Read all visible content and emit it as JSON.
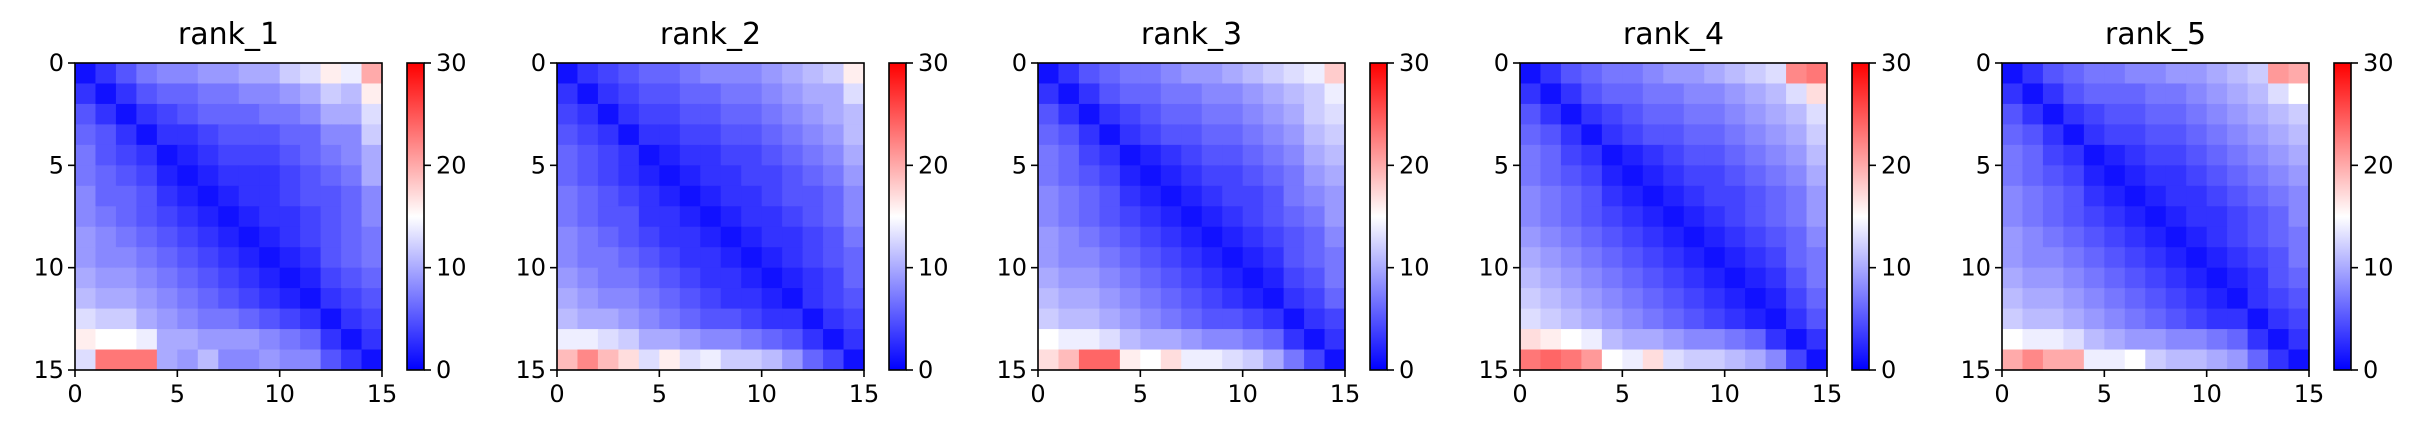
{
  "chart_data": [
    {
      "type": "heatmap",
      "title": "rank_1",
      "xlim": [
        0,
        15
      ],
      "ylim": [
        15,
        0
      ],
      "xticks": [
        "0",
        "5",
        "10",
        "15"
      ],
      "yticks": [
        "0",
        "5",
        "10",
        "15"
      ],
      "colorbar": {
        "range": [
          0,
          30
        ],
        "ticks": [
          "0",
          "10",
          "20",
          "30"
        ],
        "colormap": "bwr"
      },
      "values": [
        [
          1,
          3,
          5,
          7,
          8,
          8,
          9,
          9,
          10,
          10,
          12,
          13,
          16,
          14,
          20
        ],
        [
          3,
          1,
          3,
          5,
          6,
          6,
          7,
          7,
          8,
          8,
          9,
          10,
          12,
          11,
          16
        ],
        [
          5,
          3,
          1,
          3,
          4,
          5,
          6,
          6,
          6,
          7,
          7,
          8,
          10,
          10,
          13
        ],
        [
          6,
          5,
          3,
          1,
          3,
          3,
          4,
          5,
          5,
          5,
          6,
          6,
          8,
          8,
          12
        ],
        [
          7,
          5,
          4,
          3,
          1,
          2,
          3,
          4,
          4,
          4,
          5,
          6,
          7,
          8,
          10
        ],
        [
          7,
          6,
          5,
          4,
          2,
          1,
          2,
          3,
          3,
          3,
          4,
          5,
          6,
          7,
          10
        ],
        [
          8,
          6,
          6,
          5,
          3,
          2,
          1,
          2,
          3,
          3,
          4,
          5,
          5,
          6,
          8
        ],
        [
          8,
          7,
          6,
          5,
          4,
          3,
          2,
          1,
          2,
          3,
          3,
          4,
          5,
          6,
          8
        ],
        [
          9,
          8,
          7,
          6,
          5,
          4,
          3,
          2,
          1,
          2,
          3,
          4,
          5,
          6,
          7
        ],
        [
          9,
          8,
          8,
          7,
          6,
          5,
          4,
          3,
          2,
          1,
          2,
          3,
          5,
          6,
          7
        ],
        [
          10,
          9,
          9,
          8,
          7,
          6,
          5,
          4,
          3,
          2,
          1,
          2,
          4,
          5,
          6
        ],
        [
          11,
          10,
          10,
          9,
          8,
          7,
          6,
          5,
          4,
          3,
          2,
          1,
          3,
          4,
          5
        ],
        [
          13,
          12,
          12,
          10,
          9,
          8,
          7,
          7,
          6,
          5,
          4,
          3,
          1,
          3,
          4
        ],
        [
          16,
          15,
          15,
          14,
          10,
          10,
          9,
          9,
          9,
          8,
          7,
          6,
          3,
          1,
          3
        ],
        [
          13,
          23,
          23,
          23,
          10,
          9,
          11,
          8,
          8,
          9,
          8,
          8,
          5,
          3,
          1
        ]
      ]
    },
    {
      "type": "heatmap",
      "title": "rank_2",
      "xlim": [
        0,
        15
      ],
      "ylim": [
        15,
        0
      ],
      "xticks": [
        "0",
        "5",
        "10",
        "15"
      ],
      "yticks": [
        "0",
        "5",
        "10",
        "15"
      ],
      "colorbar": {
        "range": [
          0,
          30
        ],
        "ticks": [
          "0",
          "10",
          "20",
          "30"
        ],
        "colormap": "bwr"
      },
      "values": [
        [
          1,
          3,
          4,
          5,
          6,
          6,
          7,
          8,
          8,
          8,
          9,
          10,
          11,
          12,
          16
        ],
        [
          3,
          1,
          3,
          4,
          5,
          5,
          6,
          6,
          7,
          7,
          8,
          9,
          10,
          10,
          13
        ],
        [
          4,
          3,
          1,
          3,
          4,
          4,
          5,
          5,
          6,
          6,
          7,
          8,
          9,
          10,
          11
        ],
        [
          5,
          4,
          3,
          1,
          3,
          3,
          4,
          4,
          5,
          5,
          6,
          7,
          8,
          9,
          11
        ],
        [
          6,
          5,
          4,
          3,
          1,
          2,
          3,
          3,
          4,
          4,
          5,
          6,
          7,
          8,
          10
        ],
        [
          6,
          5,
          4,
          3,
          2,
          1,
          2,
          3,
          3,
          4,
          4,
          5,
          6,
          7,
          9
        ],
        [
          7,
          6,
          5,
          4,
          3,
          2,
          1,
          2,
          3,
          3,
          4,
          5,
          5,
          6,
          8
        ],
        [
          7,
          6,
          5,
          5,
          3,
          3,
          2,
          1,
          2,
          3,
          3,
          4,
          5,
          6,
          8
        ],
        [
          8,
          7,
          6,
          5,
          4,
          3,
          3,
          2,
          1,
          2,
          3,
          3,
          4,
          5,
          7
        ],
        [
          8,
          7,
          7,
          6,
          5,
          4,
          3,
          3,
          2,
          1,
          2,
          3,
          4,
          5,
          6
        ],
        [
          9,
          8,
          7,
          7,
          6,
          5,
          4,
          3,
          3,
          2,
          1,
          2,
          3,
          4,
          6
        ],
        [
          10,
          9,
          8,
          8,
          7,
          6,
          5,
          4,
          3,
          3,
          2,
          1,
          3,
          4,
          5
        ],
        [
          11,
          10,
          10,
          9,
          8,
          7,
          6,
          5,
          5,
          4,
          3,
          3,
          1,
          3,
          4
        ],
        [
          14,
          14,
          13,
          12,
          10,
          10,
          9,
          8,
          8,
          7,
          6,
          5,
          3,
          1,
          3
        ],
        [
          19,
          22,
          19,
          17,
          13,
          16,
          13,
          14,
          12,
          12,
          11,
          9,
          6,
          4,
          1
        ]
      ]
    },
    {
      "type": "heatmap",
      "title": "rank_3",
      "xlim": [
        0,
        15
      ],
      "ylim": [
        15,
        0
      ],
      "xticks": [
        "0",
        "5",
        "10",
        "15"
      ],
      "yticks": [
        "0",
        "5",
        "10",
        "15"
      ],
      "colorbar": {
        "range": [
          0,
          30
        ],
        "ticks": [
          "0",
          "10",
          "20",
          "30"
        ],
        "colormap": "bwr"
      },
      "values": [
        [
          1,
          3,
          5,
          6,
          7,
          7,
          8,
          9,
          9,
          10,
          11,
          12,
          13,
          14,
          18
        ],
        [
          3,
          1,
          3,
          5,
          6,
          6,
          7,
          7,
          8,
          8,
          9,
          10,
          11,
          12,
          14
        ],
        [
          5,
          3,
          1,
          3,
          4,
          5,
          6,
          6,
          7,
          7,
          8,
          9,
          10,
          12,
          13
        ],
        [
          6,
          5,
          3,
          1,
          3,
          4,
          5,
          5,
          6,
          6,
          7,
          8,
          9,
          11,
          12
        ],
        [
          7,
          6,
          4,
          3,
          1,
          2,
          3,
          4,
          5,
          5,
          6,
          7,
          8,
          10,
          11
        ],
        [
          7,
          6,
          5,
          4,
          2,
          1,
          2,
          3,
          4,
          4,
          5,
          6,
          7,
          9,
          10
        ],
        [
          8,
          7,
          6,
          5,
          3,
          2,
          1,
          2,
          3,
          4,
          4,
          5,
          7,
          8,
          9
        ],
        [
          8,
          7,
          6,
          5,
          4,
          3,
          2,
          1,
          2,
          3,
          4,
          5,
          6,
          7,
          9
        ],
        [
          9,
          8,
          7,
          6,
          5,
          4,
          3,
          2,
          1,
          2,
          3,
          4,
          5,
          6,
          8
        ],
        [
          9,
          8,
          8,
          7,
          6,
          5,
          4,
          3,
          2,
          1,
          2,
          3,
          5,
          6,
          7
        ],
        [
          10,
          9,
          9,
          8,
          7,
          6,
          5,
          4,
          3,
          2,
          1,
          2,
          4,
          5,
          7
        ],
        [
          11,
          10,
          10,
          9,
          8,
          7,
          6,
          5,
          4,
          3,
          2,
          1,
          3,
          4,
          6
        ],
        [
          12,
          11,
          11,
          10,
          9,
          8,
          7,
          6,
          5,
          5,
          4,
          3,
          1,
          3,
          4
        ],
        [
          15,
          14,
          14,
          13,
          11,
          10,
          10,
          9,
          8,
          8,
          7,
          6,
          3,
          1,
          3
        ],
        [
          17,
          19,
          24,
          24,
          16,
          15,
          17,
          14,
          14,
          13,
          12,
          10,
          7,
          4,
          1
        ]
      ]
    },
    {
      "type": "heatmap",
      "title": "rank_4",
      "xlim": [
        0,
        15
      ],
      "ylim": [
        15,
        0
      ],
      "xticks": [
        "0",
        "5",
        "10",
        "15"
      ],
      "yticks": [
        "0",
        "5",
        "10",
        "15"
      ],
      "colorbar": {
        "range": [
          0,
          30
        ],
        "ticks": [
          "0",
          "10",
          "20",
          "30"
        ],
        "colormap": "bwr"
      },
      "values": [
        [
          1,
          3,
          5,
          6,
          7,
          7,
          8,
          9,
          9,
          10,
          11,
          12,
          13,
          22,
          23
        ],
        [
          3,
          1,
          3,
          5,
          6,
          6,
          7,
          7,
          8,
          8,
          9,
          10,
          11,
          13,
          17
        ],
        [
          5,
          3,
          1,
          3,
          4,
          5,
          6,
          6,
          7,
          7,
          8,
          9,
          10,
          11,
          13
        ],
        [
          6,
          5,
          3,
          1,
          3,
          4,
          5,
          5,
          6,
          6,
          7,
          8,
          9,
          10,
          12
        ],
        [
          7,
          6,
          4,
          3,
          1,
          2,
          3,
          4,
          5,
          5,
          6,
          7,
          8,
          9,
          11
        ],
        [
          7,
          6,
          5,
          4,
          2,
          1,
          2,
          3,
          4,
          4,
          5,
          6,
          7,
          8,
          10
        ],
        [
          8,
          7,
          6,
          5,
          3,
          2,
          1,
          2,
          3,
          4,
          4,
          5,
          6,
          7,
          9
        ],
        [
          8,
          7,
          6,
          5,
          4,
          3,
          2,
          1,
          2,
          3,
          4,
          5,
          6,
          7,
          9
        ],
        [
          9,
          8,
          7,
          6,
          5,
          4,
          3,
          2,
          1,
          2,
          3,
          4,
          5,
          6,
          8
        ],
        [
          10,
          9,
          8,
          7,
          6,
          5,
          4,
          3,
          2,
          1,
          2,
          3,
          4,
          6,
          7
        ],
        [
          11,
          10,
          9,
          8,
          7,
          6,
          5,
          4,
          3,
          2,
          1,
          2,
          3,
          5,
          7
        ],
        [
          12,
          11,
          10,
          9,
          8,
          7,
          6,
          5,
          4,
          3,
          2,
          1,
          2,
          4,
          6
        ],
        [
          13,
          12,
          11,
          10,
          9,
          8,
          7,
          6,
          5,
          4,
          3,
          2,
          1,
          3,
          5
        ],
        [
          17,
          16,
          15,
          14,
          11,
          10,
          10,
          9,
          8,
          8,
          7,
          6,
          3,
          1,
          3
        ],
        [
          23,
          24,
          23,
          21,
          15,
          14,
          17,
          13,
          12,
          12,
          11,
          10,
          8,
          4,
          1
        ]
      ]
    },
    {
      "type": "heatmap",
      "title": "rank_5",
      "xlim": [
        0,
        15
      ],
      "ylim": [
        15,
        0
      ],
      "xticks": [
        "0",
        "5",
        "10",
        "15"
      ],
      "yticks": [
        "0",
        "5",
        "10",
        "15"
      ],
      "colorbar": {
        "range": [
          0,
          30
        ],
        "ticks": [
          "0",
          "10",
          "20",
          "30"
        ],
        "colormap": "bwr"
      },
      "values": [
        [
          1,
          3,
          5,
          6,
          7,
          7,
          8,
          8,
          9,
          9,
          10,
          11,
          12,
          21,
          20
        ],
        [
          3,
          1,
          3,
          5,
          6,
          6,
          6,
          7,
          7,
          8,
          9,
          10,
          11,
          13,
          15
        ],
        [
          5,
          3,
          1,
          3,
          4,
          5,
          5,
          6,
          6,
          7,
          8,
          9,
          10,
          11,
          12
        ],
        [
          6,
          5,
          3,
          1,
          3,
          4,
          4,
          5,
          5,
          6,
          7,
          8,
          9,
          10,
          11
        ],
        [
          7,
          6,
          4,
          3,
          1,
          2,
          3,
          4,
          4,
          5,
          6,
          7,
          8,
          9,
          10
        ],
        [
          7,
          6,
          5,
          4,
          2,
          1,
          2,
          3,
          3,
          4,
          5,
          6,
          7,
          8,
          9
        ],
        [
          8,
          7,
          6,
          5,
          3,
          2,
          1,
          2,
          3,
          3,
          4,
          5,
          6,
          7,
          8
        ],
        [
          8,
          7,
          6,
          5,
          4,
          3,
          2,
          1,
          2,
          3,
          3,
          4,
          5,
          6,
          8
        ],
        [
          9,
          8,
          7,
          6,
          5,
          4,
          3,
          2,
          1,
          2,
          3,
          4,
          5,
          6,
          7
        ],
        [
          9,
          8,
          8,
          7,
          6,
          5,
          4,
          3,
          2,
          1,
          2,
          3,
          4,
          5,
          7
        ],
        [
          10,
          9,
          9,
          8,
          7,
          6,
          5,
          4,
          3,
          2,
          1,
          2,
          3,
          5,
          6
        ],
        [
          11,
          10,
          10,
          9,
          8,
          7,
          6,
          5,
          4,
          3,
          2,
          1,
          3,
          4,
          5
        ],
        [
          12,
          11,
          11,
          10,
          9,
          8,
          7,
          6,
          5,
          4,
          3,
          3,
          1,
          3,
          4
        ],
        [
          15,
          14,
          14,
          13,
          11,
          10,
          9,
          9,
          8,
          8,
          7,
          6,
          3,
          1,
          3
        ],
        [
          20,
          22,
          20,
          20,
          14,
          14,
          15,
          12,
          11,
          11,
          10,
          9,
          6,
          3,
          1
        ]
      ]
    }
  ]
}
